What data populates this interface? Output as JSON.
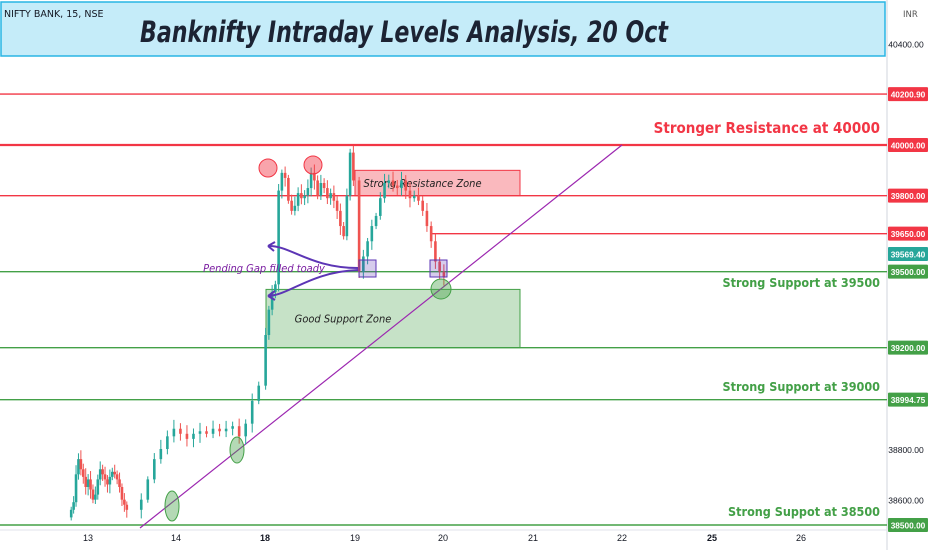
{
  "header": {
    "symbol": "NIFTY BANK, 15, NSE",
    "title": "Banknifty Intraday Levels Analysis, 20 Oct",
    "currency": "INR"
  },
  "colors": {
    "red": "#f23645",
    "green": "#43a047",
    "bull": "#26a69a",
    "bear": "#ef5350",
    "trend": "#9c27b0",
    "arrow": "#5c35b5",
    "banner_bg": "#c5ecf9",
    "banner_border": "#28b5e4"
  },
  "chart_data": {
    "type": "candlestick",
    "title": "Banknifty Intraday Levels Analysis, 20 Oct",
    "x_ticks": [
      "13",
      "14",
      "18",
      "19",
      "20",
      "21",
      "22",
      "25",
      "26"
    ],
    "y_ticks": [
      "40400.00",
      "38800.00",
      "38600.00"
    ],
    "ylim": [
      38500,
      40700
    ],
    "price_tags": [
      {
        "label": "40200.90",
        "value": 40200.9,
        "color": "red"
      },
      {
        "label": "40000.00",
        "value": 40000,
        "color": "red"
      },
      {
        "label": "39800.00",
        "value": 39800,
        "color": "red"
      },
      {
        "label": "39650.00",
        "value": 39650,
        "color": "red"
      },
      {
        "label": "39569.40",
        "value": 39569.4,
        "color": "bull"
      },
      {
        "label": "39500.00",
        "value": 39500,
        "color": "green"
      },
      {
        "label": "39200.00",
        "value": 39200,
        "color": "green"
      },
      {
        "label": "38994.75",
        "value": 38994.75,
        "color": "green"
      },
      {
        "label": "38500.00",
        "value": 38500,
        "color": "green"
      }
    ],
    "levels": [
      {
        "value": 40200.9,
        "color": "red"
      },
      {
        "value": 40000,
        "color": "red",
        "label": "Stronger Resistance at 40000"
      },
      {
        "value": 39800,
        "color": "red"
      },
      {
        "value": 39650,
        "color": "red"
      },
      {
        "value": 39500,
        "color": "green",
        "label": "Strong Support at 39500"
      },
      {
        "value": 39200,
        "color": "green"
      },
      {
        "value": 38994.75,
        "color": "green",
        "label": "Strong Support at 39000"
      },
      {
        "value": 38500,
        "color": "green",
        "label": "Strong Suppot at 38500"
      }
    ],
    "zones": [
      {
        "label": "Strong Resistance Zone",
        "from": 39800,
        "to": 39900,
        "color": "red"
      },
      {
        "label": "Good Support Zone",
        "from": 39200,
        "to": 39430,
        "color": "green"
      }
    ],
    "annotations": [
      {
        "text": "Pending Gap filled toady"
      }
    ],
    "candles_close": [
      38560,
      38590,
      38700,
      38760,
      38720,
      38690,
      38650,
      38680,
      38640,
      38600,
      38620,
      38680,
      38720,
      38700,
      38680,
      38660,
      38690,
      38710,
      38700,
      38680,
      38650,
      38600,
      38580,
      38560,
      38600,
      38680,
      38760,
      38800,
      38850,
      38880,
      38860,
      38840,
      38860,
      38870,
      38860,
      38880,
      38870,
      38880,
      38890,
      38850,
      38900,
      38990,
      39050,
      39250,
      39350,
      39420,
      39450,
      39820,
      39890,
      39870,
      39780,
      39740,
      39760,
      39810,
      39790,
      39800,
      39830,
      39890,
      39860,
      39800,
      39850,
      39830,
      39790,
      39810,
      39780,
      39740,
      39680,
      39640,
      39800,
      39970,
      39860,
      39500,
      39560,
      39620,
      39680,
      39720,
      39790,
      39850,
      39860,
      39840,
      39830,
      39860,
      39820,
      39790,
      39800,
      39780,
      39740,
      39680,
      39620,
      39540,
      39500,
      39480
    ]
  }
}
